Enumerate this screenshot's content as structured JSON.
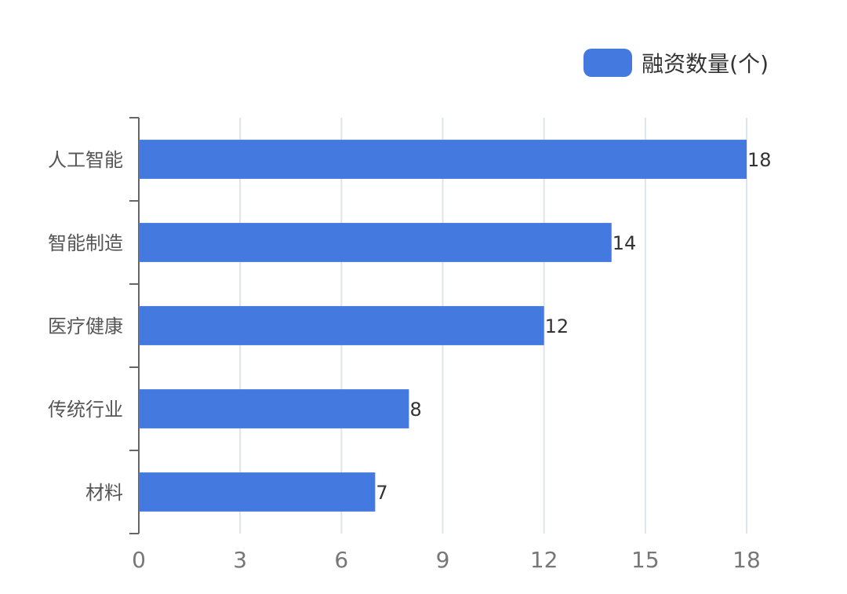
{
  "colors": {
    "bar": "#4479e0",
    "axis": "#666666",
    "grid": "#dfe4ea",
    "tick_label": "#777777",
    "category_label": "#555555",
    "value_label": "#333333"
  },
  "legend": {
    "label": "融资数量(个)",
    "placement": "top-right"
  },
  "chart_data": {
    "type": "bar",
    "orientation": "horizontal",
    "categories": [
      "人工智能",
      "智能制造",
      "医疗健康",
      "传统行业",
      "材料"
    ],
    "series": [
      {
        "name": "融资数量(个)",
        "values": [
          18,
          14,
          12,
          8,
          7
        ]
      }
    ],
    "xlim": [
      0,
      18
    ],
    "xticks": [
      "0",
      "3",
      "6",
      "9",
      "12",
      "15",
      "18"
    ],
    "grid": "vertical",
    "data_labels": true
  }
}
